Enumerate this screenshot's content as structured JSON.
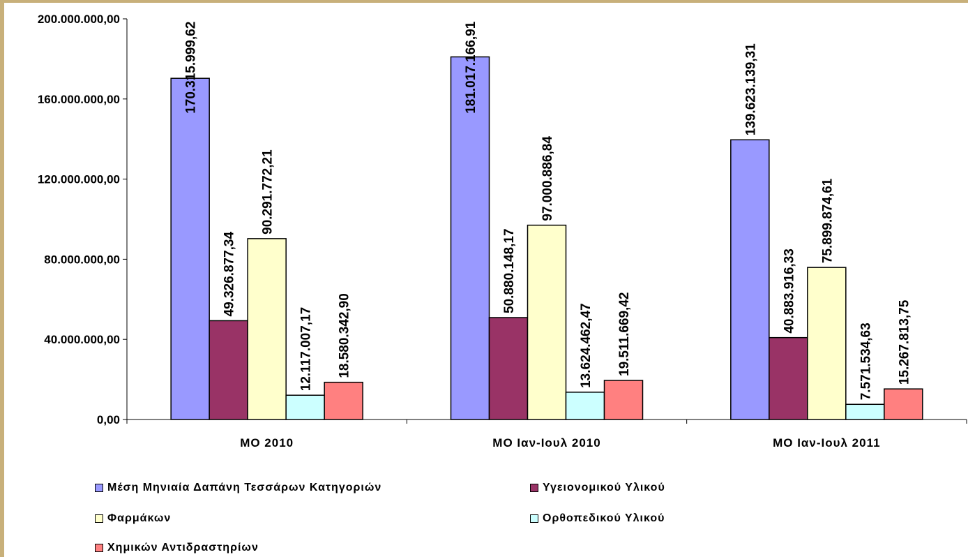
{
  "chart_data": {
    "type": "bar",
    "categories": [
      "ΜΟ 2010",
      "ΜΟ Ιαν-Ιουλ 2010",
      "ΜΟ Ιαν-Ιουλ 2011"
    ],
    "ylim": [
      0,
      200000000
    ],
    "yticks": [
      0,
      40000000,
      80000000,
      120000000,
      160000000,
      200000000
    ],
    "ytick_labels": [
      "0,00",
      "40.000.000,00",
      "80.000.000,00",
      "120.000.000,00",
      "160.000.000,00",
      "200.000.000,00"
    ],
    "legend_position": "bottom",
    "series": [
      {
        "name": "Μέση Μηνιαία Δαπάνη Τεσσάρων Κατηγοριών",
        "color": "#9999ff",
        "values": [
          170315999.62,
          181017166.91,
          139623139.31
        ],
        "labels": [
          "170.315.999,62",
          "181.017.166,91",
          "139.623.139,31"
        ]
      },
      {
        "name": "Υγειονομικού Υλικού",
        "color": "#993366",
        "values": [
          49326877.34,
          50880148.17,
          40883916.33
        ],
        "labels": [
          "49.326.877,34",
          "50.880.148,17",
          "40.883.916,33"
        ]
      },
      {
        "name": "Φαρμάκων",
        "color": "#ffffcc",
        "values": [
          90291772.21,
          97000886.84,
          75899874.61
        ],
        "labels": [
          "90.291.772,21",
          "97.000.886,84",
          "75.899.874,61"
        ]
      },
      {
        "name": "Ορθοπεδικού Υλικού",
        "color": "#ccffff",
        "values": [
          12117007.17,
          13624462.47,
          7571534.63
        ],
        "labels": [
          "12.117.007,17",
          "13.624.462,47",
          "7.571.534,63"
        ]
      },
      {
        "name": "Χημικών Αντιδραστηρίων",
        "color": "#ff8080",
        "values": [
          18580342.9,
          19511669.42,
          15267813.75
        ],
        "labels": [
          "18.580.342,90",
          "19.511.669,42",
          "15.267.813,75"
        ]
      }
    ]
  }
}
